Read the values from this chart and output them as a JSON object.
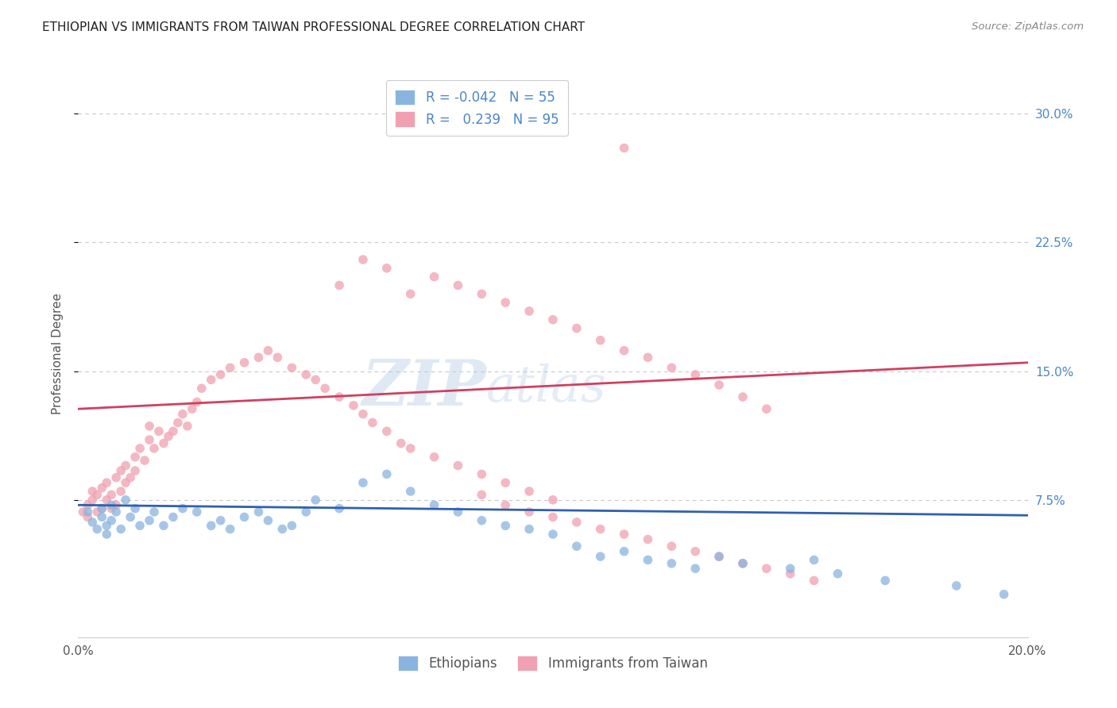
{
  "title": "ETHIOPIAN VS IMMIGRANTS FROM TAIWAN PROFESSIONAL DEGREE CORRELATION CHART",
  "source": "Source: ZipAtlas.com",
  "ylabel": "Professional Degree",
  "xlim": [
    0.0,
    0.2
  ],
  "ylim": [
    -0.005,
    0.325
  ],
  "yticks": [
    0.075,
    0.15,
    0.225,
    0.3
  ],
  "ytick_labels": [
    "7.5%",
    "15.0%",
    "22.5%",
    "30.0%"
  ],
  "xticks": [
    0.0,
    0.05,
    0.1,
    0.15,
    0.2
  ],
  "xtick_labels": [
    "0.0%",
    "",
    "",
    "",
    "20.0%"
  ],
  "blue_color": "#8ab4e0",
  "pink_color": "#f0a0b0",
  "blue_line_color": "#3060b0",
  "pink_line_color": "#d04060",
  "R_blue": -0.042,
  "N_blue": 55,
  "R_pink": 0.239,
  "N_pink": 95,
  "blue_scatter_x": [
    0.002,
    0.003,
    0.004,
    0.005,
    0.005,
    0.006,
    0.006,
    0.007,
    0.007,
    0.008,
    0.009,
    0.01,
    0.011,
    0.012,
    0.013,
    0.015,
    0.016,
    0.018,
    0.02,
    0.022,
    0.025,
    0.028,
    0.03,
    0.032,
    0.035,
    0.038,
    0.04,
    0.043,
    0.045,
    0.048,
    0.05,
    0.055,
    0.06,
    0.065,
    0.07,
    0.075,
    0.08,
    0.085,
    0.09,
    0.095,
    0.1,
    0.105,
    0.11,
    0.115,
    0.12,
    0.125,
    0.13,
    0.135,
    0.14,
    0.15,
    0.155,
    0.16,
    0.17,
    0.185,
    0.195
  ],
  "blue_scatter_y": [
    0.068,
    0.062,
    0.058,
    0.065,
    0.07,
    0.055,
    0.06,
    0.063,
    0.072,
    0.068,
    0.058,
    0.075,
    0.065,
    0.07,
    0.06,
    0.063,
    0.068,
    0.06,
    0.065,
    0.07,
    0.068,
    0.06,
    0.063,
    0.058,
    0.065,
    0.068,
    0.063,
    0.058,
    0.06,
    0.068,
    0.075,
    0.07,
    0.085,
    0.09,
    0.08,
    0.072,
    0.068,
    0.063,
    0.06,
    0.058,
    0.055,
    0.048,
    0.042,
    0.045,
    0.04,
    0.038,
    0.035,
    0.042,
    0.038,
    0.035,
    0.04,
    0.032,
    0.028,
    0.025,
    0.02
  ],
  "pink_scatter_x": [
    0.001,
    0.002,
    0.002,
    0.003,
    0.003,
    0.004,
    0.004,
    0.005,
    0.005,
    0.006,
    0.006,
    0.007,
    0.007,
    0.008,
    0.008,
    0.009,
    0.009,
    0.01,
    0.01,
    0.011,
    0.012,
    0.012,
    0.013,
    0.014,
    0.015,
    0.015,
    0.016,
    0.017,
    0.018,
    0.019,
    0.02,
    0.021,
    0.022,
    0.023,
    0.024,
    0.025,
    0.026,
    0.028,
    0.03,
    0.032,
    0.035,
    0.038,
    0.04,
    0.042,
    0.045,
    0.048,
    0.05,
    0.052,
    0.055,
    0.058,
    0.06,
    0.062,
    0.065,
    0.068,
    0.07,
    0.075,
    0.08,
    0.085,
    0.09,
    0.095,
    0.1,
    0.055,
    0.06,
    0.065,
    0.07,
    0.075,
    0.08,
    0.085,
    0.09,
    0.095,
    0.1,
    0.105,
    0.11,
    0.115,
    0.12,
    0.125,
    0.13,
    0.135,
    0.14,
    0.145,
    0.085,
    0.09,
    0.095,
    0.1,
    0.105,
    0.11,
    0.115,
    0.12,
    0.125,
    0.13,
    0.135,
    0.14,
    0.145,
    0.15,
    0.155
  ],
  "pink_scatter_y": [
    0.068,
    0.072,
    0.065,
    0.075,
    0.08,
    0.068,
    0.078,
    0.07,
    0.082,
    0.075,
    0.085,
    0.07,
    0.078,
    0.072,
    0.088,
    0.08,
    0.092,
    0.085,
    0.095,
    0.088,
    0.1,
    0.092,
    0.105,
    0.098,
    0.11,
    0.118,
    0.105,
    0.115,
    0.108,
    0.112,
    0.115,
    0.12,
    0.125,
    0.118,
    0.128,
    0.132,
    0.14,
    0.145,
    0.148,
    0.152,
    0.155,
    0.158,
    0.162,
    0.158,
    0.152,
    0.148,
    0.145,
    0.14,
    0.135,
    0.13,
    0.125,
    0.12,
    0.115,
    0.108,
    0.105,
    0.1,
    0.095,
    0.09,
    0.085,
    0.08,
    0.075,
    0.2,
    0.215,
    0.21,
    0.195,
    0.205,
    0.2,
    0.195,
    0.19,
    0.185,
    0.18,
    0.175,
    0.168,
    0.162,
    0.158,
    0.152,
    0.148,
    0.142,
    0.135,
    0.128,
    0.078,
    0.072,
    0.068,
    0.065,
    0.062,
    0.058,
    0.055,
    0.052,
    0.048,
    0.045,
    0.042,
    0.038,
    0.035,
    0.032,
    0.028
  ],
  "watermark_zip": "ZIP",
  "watermark_atlas": "atlas",
  "legend_label_blue": "Ethiopians",
  "legend_label_pink": "Immigrants from Taiwan",
  "background_color": "#ffffff",
  "grid_color": "#c8c8c8",
  "title_color": "#222222",
  "legend_text_color": "#4a86c8",
  "tick_color_right": "#4a86c8",
  "source_color": "#888888"
}
